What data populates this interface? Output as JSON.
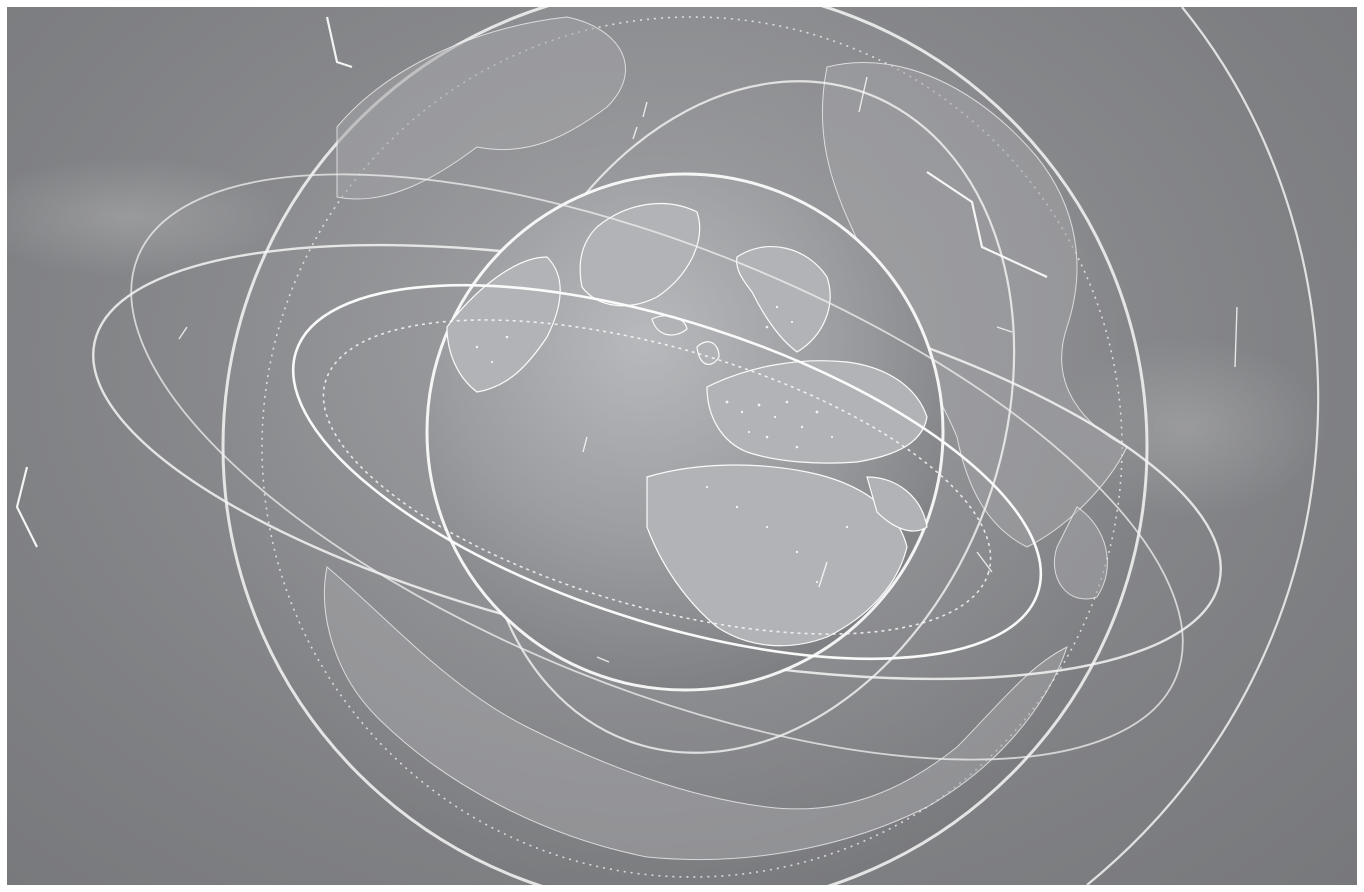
{
  "scene": {
    "subject": "globe-hologram",
    "colors": {
      "background": "#85868a",
      "line": "#ffffff",
      "land": "#a4a5a8",
      "ocean": "#8e8f92"
    }
  }
}
